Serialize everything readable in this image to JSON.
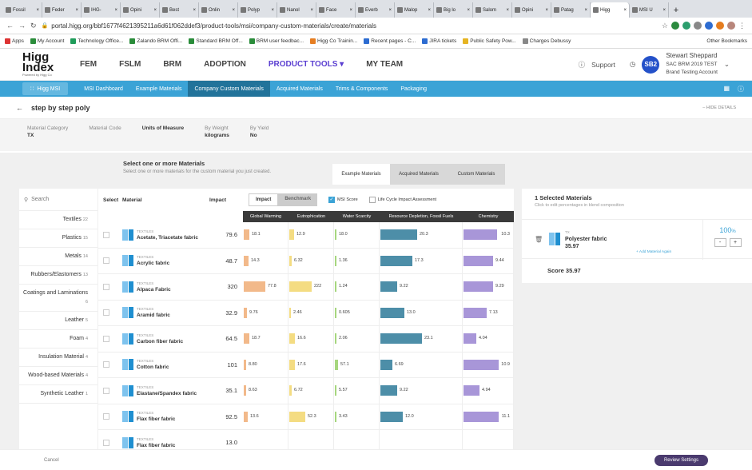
{
  "browser": {
    "tabs": [
      {
        "label": "Fossil"
      },
      {
        "label": "Feder"
      },
      {
        "label": "IHG-"
      },
      {
        "label": "Opini"
      },
      {
        "label": "Best"
      },
      {
        "label": "Onlin"
      },
      {
        "label": "Polyp"
      },
      {
        "label": "Nanol"
      },
      {
        "label": "Face"
      },
      {
        "label": "Everb"
      },
      {
        "label": "Malop"
      },
      {
        "label": "Big lo"
      },
      {
        "label": "Salom"
      },
      {
        "label": "Opini"
      },
      {
        "label": "Patag"
      },
      {
        "label": "Higg"
      },
      {
        "label": "MSI U"
      }
    ],
    "active_tab_index": 15,
    "new_tab": "+",
    "url": "portal.higg.org/bbf1677f4621395211a6d61f062ddef3/product-tools/msi/company-custom-materials/create/materials",
    "bookmarks": [
      "Apps",
      "My Account",
      "Technology Office...",
      "Zalando BRM Offi...",
      "Standard BRM Off...",
      "BRM user feedbac...",
      "Higg Co Trainin...",
      "Recent pages - C...",
      "JIRA tickets",
      "Public Safety Pow...",
      "Charges Debussy"
    ],
    "other_bookmarks": "Other Bookmarks"
  },
  "header": {
    "logo": "Higg Index",
    "logo_sub": "Powered by Higg Co",
    "nav": [
      "FEM",
      "FSLM",
      "BRM",
      "ADOPTION",
      "PRODUCT TOOLS ▾",
      "MY TEAM"
    ],
    "support": "Support",
    "avatar": "SB2",
    "user_name": "Stewart Sheppard",
    "user_org": "SAC BRM 2019 TEST",
    "user_account": "Brand Testing Account"
  },
  "subnav": {
    "msi": "Higg MSI",
    "items": [
      "MSI Dashboard",
      "Example Materials",
      "Company Custom Materials",
      "Acquired Materials",
      "Trims & Components",
      "Packaging"
    ]
  },
  "page": {
    "title": "step by step poly",
    "hide": "HIDE DETAILS",
    "details": [
      {
        "label": "Material Category",
        "value": "TX"
      },
      {
        "label": "Material Code",
        "value": ""
      },
      {
        "label": "Units of Measure",
        "value": ""
      },
      {
        "label": "By Weight",
        "value": "kilograms"
      },
      {
        "label": "By Yield",
        "value": "No"
      }
    ]
  },
  "select": {
    "heading": "Select one or more Materials",
    "sub": "Select one or more materials for the custom material you just created.",
    "tabs": [
      "Example Materials",
      "Acquired Materials",
      "Custom Materials"
    ]
  },
  "sidebar": {
    "search": "Search",
    "categories": [
      {
        "label": "Textiles",
        "count": "22"
      },
      {
        "label": "Plastics",
        "count": "15"
      },
      {
        "label": "Metals",
        "count": "14"
      },
      {
        "label": "Rubbers/Elastomers",
        "count": "13"
      },
      {
        "label": "Coatings and Laminations",
        "count": "6"
      },
      {
        "label": "Leather",
        "count": "5"
      },
      {
        "label": "Foam",
        "count": "4"
      },
      {
        "label": "Insulation Material",
        "count": "4"
      },
      {
        "label": "Wood-based Materials",
        "count": "4"
      },
      {
        "label": "Synthetic Leather",
        "count": "1"
      }
    ]
  },
  "table": {
    "headers": {
      "select": "Select",
      "material": "Material",
      "impact": "Impact"
    },
    "toggle": [
      "Impact",
      "Benchmark"
    ],
    "msi_score": "MSI Score",
    "lca": "Life Cycle Impact Assessment",
    "columns": [
      "Global Warming",
      "Eutrophication",
      "Water Scarcity",
      "Resource Depletion, Fossil Fuels",
      "Chemistry"
    ],
    "rows": [
      {
        "cat": "TEXTILES",
        "name": "Acetate, Triacetate fabric",
        "impact": "79.6",
        "vals": [
          "18.1",
          "12.9",
          "18.0",
          "20.3",
          "10.3"
        ],
        "w": [
          0.2,
          0.17,
          0.05,
          0.55,
          0.95
        ]
      },
      {
        "cat": "TEXTILES",
        "name": "Acrylic fabric",
        "impact": "48.7",
        "vals": [
          "14.3",
          "6.32",
          "1.36",
          "17.3",
          "9.44"
        ],
        "w": [
          0.15,
          0.08,
          0.02,
          0.48,
          0.85
        ]
      },
      {
        "cat": "TEXTILES",
        "name": "Alpaca Fabric",
        "impact": "320",
        "vals": [
          "77.8",
          "222",
          "1.24",
          "9.22",
          "9.29"
        ],
        "w": [
          0.72,
          0.75,
          0.02,
          0.25,
          0.85
        ]
      },
      {
        "cat": "TEXTILES",
        "name": "Aramid fabric",
        "impact": "32.9",
        "vals": [
          "9.76",
          "2.46",
          "0.605",
          "13.0",
          "7.13"
        ],
        "w": [
          0.1,
          0.02,
          0.01,
          0.36,
          0.65
        ]
      },
      {
        "cat": "TEXTILES",
        "name": "Carbon fiber fabric",
        "impact": "64.5",
        "vals": [
          "18.7",
          "16.6",
          "2.06",
          "23.1",
          "4.04"
        ],
        "w": [
          0.2,
          0.2,
          0.03,
          0.62,
          0.37
        ]
      },
      {
        "cat": "TEXTILES",
        "name": "Cotton fabric",
        "impact": "101",
        "vals": [
          "8.80",
          "17.6",
          "57.1",
          "6.69",
          "10.9"
        ],
        "w": [
          0.09,
          0.2,
          0.12,
          0.18,
          1.0
        ]
      },
      {
        "cat": "TEXTILES",
        "name": "Elastane/Spandex fabric",
        "impact": "35.1",
        "vals": [
          "8.63",
          "6.72",
          "5.57",
          "9.22",
          "4.94"
        ],
        "w": [
          0.09,
          0.08,
          0.05,
          0.25,
          0.45
        ]
      },
      {
        "cat": "TEXTILES",
        "name": "Flax fiber fabric",
        "impact": "92.5",
        "vals": [
          "13.6",
          "52.3",
          "3.43",
          "12.0",
          "11.1"
        ],
        "w": [
          0.14,
          0.55,
          0.03,
          0.33,
          1.0
        ]
      },
      {
        "cat": "TEXTILES",
        "name": "Flax fiber fabric",
        "impact": "13.0",
        "vals": [
          "",
          "",
          "",
          "",
          ""
        ],
        "w": [
          0,
          0,
          0,
          0,
          0
        ]
      }
    ]
  },
  "selected": {
    "heading": "1 Selected Materials",
    "sub": "Click to edit percentages in blend composition",
    "cat": "TX",
    "name": "Polyester fabric",
    "value": "35.97",
    "add": "+ Add Material Again",
    "pct": "100",
    "pct_unit": "%",
    "minus": "-",
    "plus": "+",
    "score": "Score 35.97"
  },
  "footer": {
    "cancel": "Cancel",
    "review": "Review Settings"
  },
  "colors": {
    "gw": "#f2b98a",
    "eu": "#f4dc82",
    "ws": "#a6d67e",
    "rd": "#4d8ea8",
    "ch": "#a896d8"
  }
}
